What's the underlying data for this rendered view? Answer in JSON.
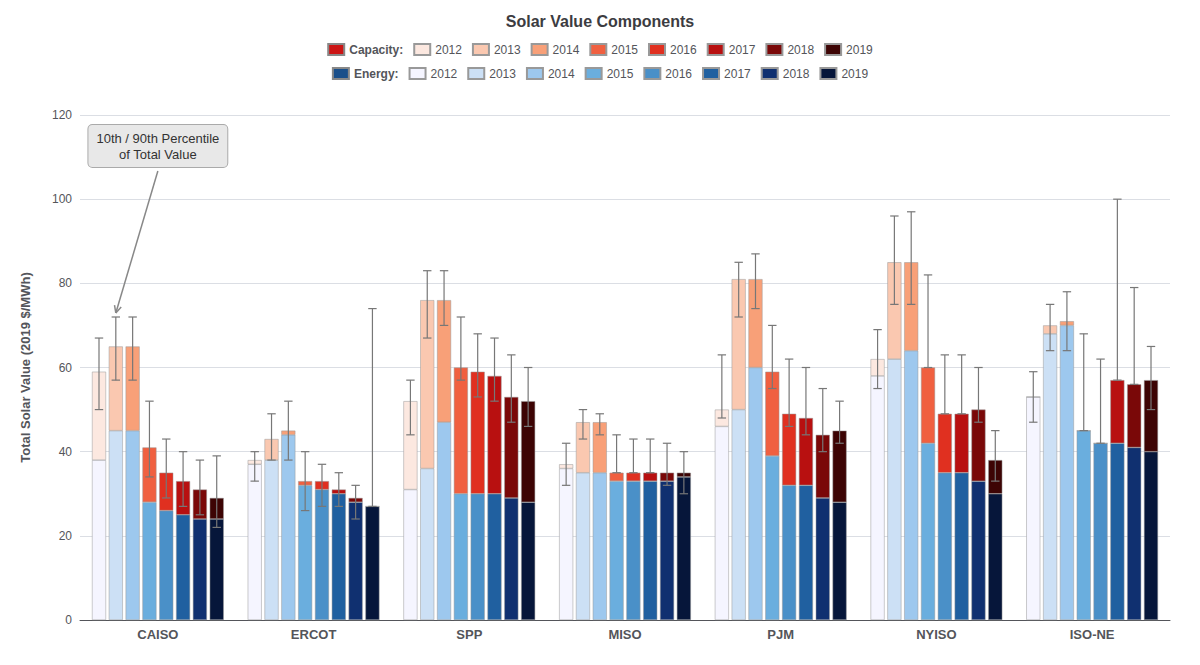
{
  "chart_data": {
    "type": "bar",
    "title": "Solar Value Components",
    "ylabel": "Total Solar Value (2019 $/MWh)",
    "categories": [
      "CAISO",
      "ERCOT",
      "SPP",
      "MISO",
      "PJM",
      "NYISO",
      "ISO-NE"
    ],
    "stacked": true,
    "grid": true,
    "ylim": [
      0,
      120
    ],
    "yticks": [
      0,
      20,
      40,
      60,
      80,
      100,
      120
    ],
    "series_groups": [
      {
        "name": "Capacity:",
        "color": "#cc1515",
        "series": [
          {
            "name": "2012",
            "color": "#fce8e0",
            "values": [
              21,
              1,
              21,
              1,
              4,
              4,
              0
            ]
          },
          {
            "name": "2013",
            "color": "#fac8b0",
            "values": [
              20,
              5,
              40,
              12,
              31,
              23,
              2
            ]
          },
          {
            "name": "2014",
            "color": "#f8a078",
            "values": [
              20,
              1,
              29,
              12,
              21,
              21,
              1
            ]
          },
          {
            "name": "2015",
            "color": "#f06040",
            "values": [
              13,
              1,
              30,
              2,
              20,
              18,
              0
            ]
          },
          {
            "name": "2016",
            "color": "#e03020",
            "values": [
              9,
              2,
              29,
              2,
              17,
              14,
              0
            ]
          },
          {
            "name": "2017",
            "color": "#b81010",
            "values": [
              8,
              1,
              28,
              2,
              16,
              14,
              15
            ]
          },
          {
            "name": "2018",
            "color": "#7a0808",
            "values": [
              7,
              1,
              24,
              2,
              15,
              17,
              15
            ]
          },
          {
            "name": "2019",
            "color": "#3d0404",
            "values": [
              5,
              0,
              24,
              1,
              17,
              8,
              17
            ]
          }
        ]
      },
      {
        "name": "Energy:",
        "color": "#1a4f8a",
        "series": [
          {
            "name": "2012",
            "color": "#f5f5ff",
            "values": [
              38,
              37,
              31,
              36,
              46,
              58,
              53
            ]
          },
          {
            "name": "2013",
            "color": "#cce0f5",
            "values": [
              45,
              38,
              36,
              35,
              50,
              62,
              68
            ]
          },
          {
            "name": "2014",
            "color": "#9dc8ee",
            "values": [
              45,
              44,
              47,
              35,
              60,
              64,
              70
            ]
          },
          {
            "name": "2015",
            "color": "#6aaede",
            "values": [
              28,
              32,
              30,
              33,
              39,
              42,
              45
            ]
          },
          {
            "name": "2016",
            "color": "#4a90c8",
            "values": [
              26,
              31,
              30,
              33,
              32,
              35,
              42
            ]
          },
          {
            "name": "2017",
            "color": "#2060a0",
            "values": [
              25,
              30,
              30,
              33,
              32,
              35,
              42
            ]
          },
          {
            "name": "2018",
            "color": "#103070",
            "values": [
              24,
              28,
              29,
              33,
              29,
              33,
              41
            ]
          },
          {
            "name": "2019",
            "color": "#06163a",
            "values": [
              24,
              27,
              28,
              34,
              28,
              30,
              40
            ]
          }
        ]
      }
    ],
    "error_bars": [
      {
        "name": "2012",
        "low": [
          50,
          33,
          44,
          32,
          48,
          55,
          47
        ],
        "high": [
          67,
          40,
          57,
          42,
          63,
          69,
          59
        ]
      },
      {
        "name": "2013",
        "low": [
          57,
          38,
          67,
          43,
          72,
          75,
          64
        ],
        "high": [
          72,
          49,
          83,
          50,
          85,
          96,
          75
        ]
      },
      {
        "name": "2014",
        "low": [
          57,
          38,
          70,
          44,
          74,
          75,
          64
        ],
        "high": [
          72,
          52,
          83,
          49,
          87,
          97,
          78
        ]
      },
      {
        "name": "2015",
        "low": [
          34,
          26,
          57,
          35,
          55,
          60,
          45
        ],
        "high": [
          52,
          40,
          72,
          44,
          70,
          82,
          68
        ]
      },
      {
        "name": "2016",
        "low": [
          29,
          27,
          53,
          35,
          46,
          49,
          42
        ],
        "high": [
          43,
          37,
          68,
          43,
          62,
          63,
          62
        ]
      },
      {
        "name": "2017",
        "low": [
          27,
          27,
          52,
          35,
          44,
          49,
          57
        ],
        "high": [
          40,
          35,
          67,
          43,
          60,
          63,
          100
        ]
      },
      {
        "name": "2018",
        "low": [
          25,
          24,
          47,
          32,
          40,
          47,
          56
        ],
        "high": [
          38,
          32,
          63,
          42,
          55,
          60,
          79
        ]
      },
      {
        "name": "2019",
        "low": [
          22,
          27,
          46,
          30,
          42,
          33,
          50
        ],
        "high": [
          39,
          74,
          60,
          40,
          52,
          45,
          65
        ]
      }
    ],
    "annotation": "10th / 90th Percentile\nof Total Value"
  }
}
